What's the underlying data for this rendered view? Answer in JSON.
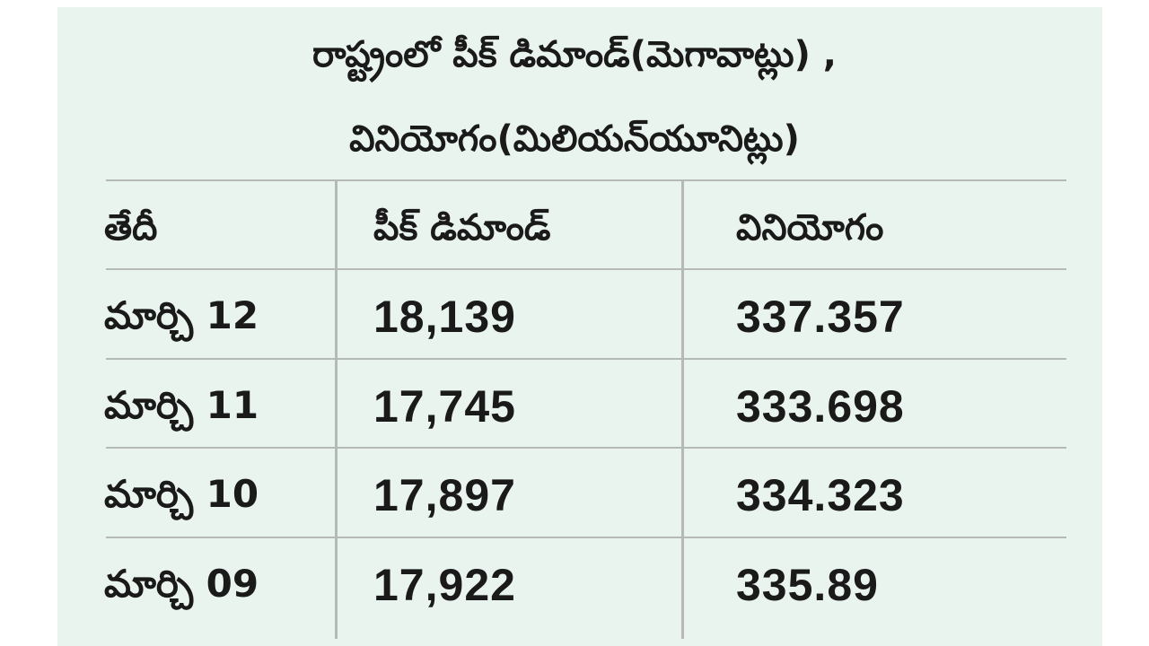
{
  "title": {
    "line1": "రాష్ట్రంలో పీక్‌ డిమాండ్‌(మెగావాట్లు) ,",
    "line2": "వినియోగం(మిలియన్‌యూనిట్లు)"
  },
  "table": {
    "headers": [
      "తేదీ",
      "పీక్‌ డిమాండ్‌",
      "వినియోగం"
    ],
    "rows": [
      {
        "date": "మార్చి 12",
        "peak": "18,139",
        "usage": "337.357"
      },
      {
        "date": "మార్చి 11",
        "peak": "17,745",
        "usage": "333.698"
      },
      {
        "date": "మార్చి 10",
        "peak": "17,897",
        "usage": "334.323"
      },
      {
        "date": "మార్చి 09",
        "peak": "17,922",
        "usage": "335.89"
      }
    ]
  }
}
